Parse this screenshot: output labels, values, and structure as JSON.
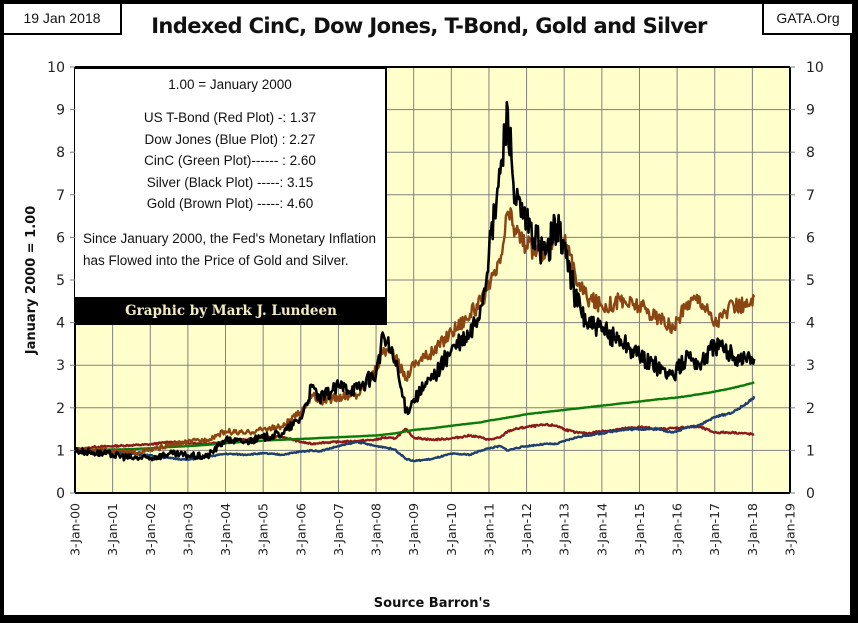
{
  "header": {
    "title": "Indexed CinC, Dow Jones, T-Bond, Gold and Silver",
    "date": "19 Jan 2018",
    "site": "GATA.Org"
  },
  "legend": {
    "heading": "1.00 = January 2000",
    "rows": [
      "US T-Bond (Red Plot) -: 1.37",
      "Dow Jones (Blue Plot) : 2.27",
      "CinC (Green Plot)------ : 2.60",
      "Silver (Black Plot) -----: 3.15",
      "Gold (Brown Plot) -----: 4.60"
    ],
    "note": "Since January 2000, the Fed's Monetary Inflation has Flowed into the Price of Gold and Silver.",
    "credit": "Graphic by Mark J. Lundeen"
  },
  "colors": {
    "plot_background": "#ffffcc",
    "grid": "#808080",
    "tbond": "#8b1a1a",
    "dow": "#1f3f6e",
    "cinc": "#0a7a0a",
    "silver": "#000000",
    "gold": "#8b4513"
  },
  "chart_data": {
    "type": "line",
    "title": "Indexed CinC, Dow Jones, T-Bond, Gold and Silver",
    "xlabel": "Source Barron's",
    "ylabel": "January 2000 = 1.00",
    "ylim": [
      0,
      10
    ],
    "xlim": [
      2000.0,
      2019.0
    ],
    "yticks": [
      "0",
      "1",
      "2",
      "3",
      "4",
      "5",
      "6",
      "7",
      "8",
      "9",
      "10"
    ],
    "xticks": [
      "3-Jan-00",
      "3-Jan-01",
      "3-Jan-02",
      "3-Jan-03",
      "3-Jan-04",
      "3-Jan-05",
      "3-Jan-06",
      "3-Jan-07",
      "3-Jan-08",
      "3-Jan-09",
      "3-Jan-10",
      "3-Jan-11",
      "3-Jan-12",
      "3-Jan-13",
      "3-Jan-14",
      "3-Jan-15",
      "3-Jan-16",
      "3-Jan-17",
      "3-Jan-18",
      "3-Jan-19"
    ],
    "grid": true,
    "legend": "top-left",
    "x": [
      2000.0,
      2000.5,
      2001.0,
      2001.5,
      2002.0,
      2002.5,
      2003.0,
      2003.5,
      2004.0,
      2004.5,
      2005.0,
      2005.5,
      2006.0,
      2006.3,
      2006.5,
      2007.0,
      2007.5,
      2008.0,
      2008.2,
      2008.5,
      2008.8,
      2009.0,
      2009.5,
      2010.0,
      2010.5,
      2010.8,
      2011.0,
      2011.3,
      2011.5,
      2011.7,
      2012.0,
      2012.5,
      2012.8,
      2013.0,
      2013.3,
      2013.6,
      2014.0,
      2014.5,
      2015.0,
      2015.5,
      2015.9,
      2016.3,
      2016.6,
      2017.0,
      2017.5,
      2018.0,
      2018.05
    ],
    "series": [
      {
        "name": "US T-Bond (Red Plot)",
        "key": "tbond",
        "final": 1.37,
        "values": [
          1.0,
          1.08,
          1.1,
          1.12,
          1.14,
          1.2,
          1.18,
          1.15,
          1.22,
          1.25,
          1.3,
          1.32,
          1.2,
          1.15,
          1.18,
          1.2,
          1.22,
          1.25,
          1.3,
          1.28,
          1.5,
          1.3,
          1.25,
          1.28,
          1.35,
          1.3,
          1.25,
          1.3,
          1.45,
          1.5,
          1.55,
          1.6,
          1.58,
          1.5,
          1.42,
          1.4,
          1.45,
          1.5,
          1.55,
          1.5,
          1.52,
          1.55,
          1.55,
          1.42,
          1.42,
          1.38,
          1.37
        ]
      },
      {
        "name": "Dow Jones (Blue Plot)",
        "key": "dow",
        "final": 2.27,
        "values": [
          1.0,
          0.93,
          0.95,
          0.92,
          0.88,
          0.82,
          0.78,
          0.85,
          0.92,
          0.9,
          0.93,
          0.9,
          0.97,
          1.0,
          0.98,
          1.1,
          1.2,
          1.1,
          1.08,
          1.02,
          0.8,
          0.75,
          0.8,
          0.92,
          0.9,
          1.0,
          1.05,
          1.1,
          1.0,
          1.05,
          1.1,
          1.15,
          1.15,
          1.22,
          1.3,
          1.35,
          1.4,
          1.48,
          1.5,
          1.5,
          1.42,
          1.55,
          1.6,
          1.78,
          1.9,
          2.2,
          2.27
        ]
      },
      {
        "name": "CinC (Green Plot)",
        "key": "cinc",
        "final": 2.6,
        "values": [
          1.0,
          1.01,
          1.02,
          1.03,
          1.05,
          1.08,
          1.1,
          1.13,
          1.17,
          1.2,
          1.23,
          1.25,
          1.27,
          1.28,
          1.29,
          1.31,
          1.33,
          1.35,
          1.37,
          1.4,
          1.45,
          1.48,
          1.52,
          1.58,
          1.63,
          1.66,
          1.7,
          1.74,
          1.77,
          1.8,
          1.85,
          1.9,
          1.93,
          1.95,
          1.98,
          2.01,
          2.05,
          2.1,
          2.15,
          2.2,
          2.23,
          2.28,
          2.32,
          2.38,
          2.47,
          2.58,
          2.6
        ]
      },
      {
        "name": "Silver (Black Plot)",
        "key": "silver",
        "final": 3.15,
        "values": [
          1.0,
          0.95,
          0.9,
          0.82,
          0.82,
          0.92,
          0.88,
          0.85,
          1.25,
          1.2,
          1.3,
          1.4,
          1.75,
          2.5,
          2.2,
          2.5,
          2.45,
          2.8,
          3.7,
          3.1,
          1.9,
          2.2,
          2.7,
          3.35,
          3.7,
          4.4,
          5.6,
          7.5,
          9.0,
          6.8,
          6.3,
          5.6,
          6.3,
          5.8,
          4.6,
          4.0,
          3.8,
          3.6,
          3.2,
          2.95,
          2.75,
          3.25,
          3.0,
          3.5,
          3.2,
          3.15,
          3.15
        ]
      },
      {
        "name": "Gold (Brown Plot)",
        "key": "gold",
        "final": 4.6,
        "values": [
          1.0,
          1.02,
          0.98,
          0.95,
          1.0,
          1.12,
          1.2,
          1.25,
          1.45,
          1.4,
          1.5,
          1.55,
          1.9,
          2.3,
          2.15,
          2.25,
          2.3,
          2.9,
          3.4,
          3.2,
          2.7,
          3.05,
          3.3,
          3.8,
          4.2,
          4.5,
          4.8,
          5.4,
          6.6,
          6.2,
          5.8,
          5.6,
          6.2,
          5.9,
          5.1,
          4.6,
          4.4,
          4.5,
          4.4,
          4.1,
          3.85,
          4.5,
          4.6,
          4.0,
          4.4,
          4.4,
          4.6
        ]
      }
    ]
  }
}
